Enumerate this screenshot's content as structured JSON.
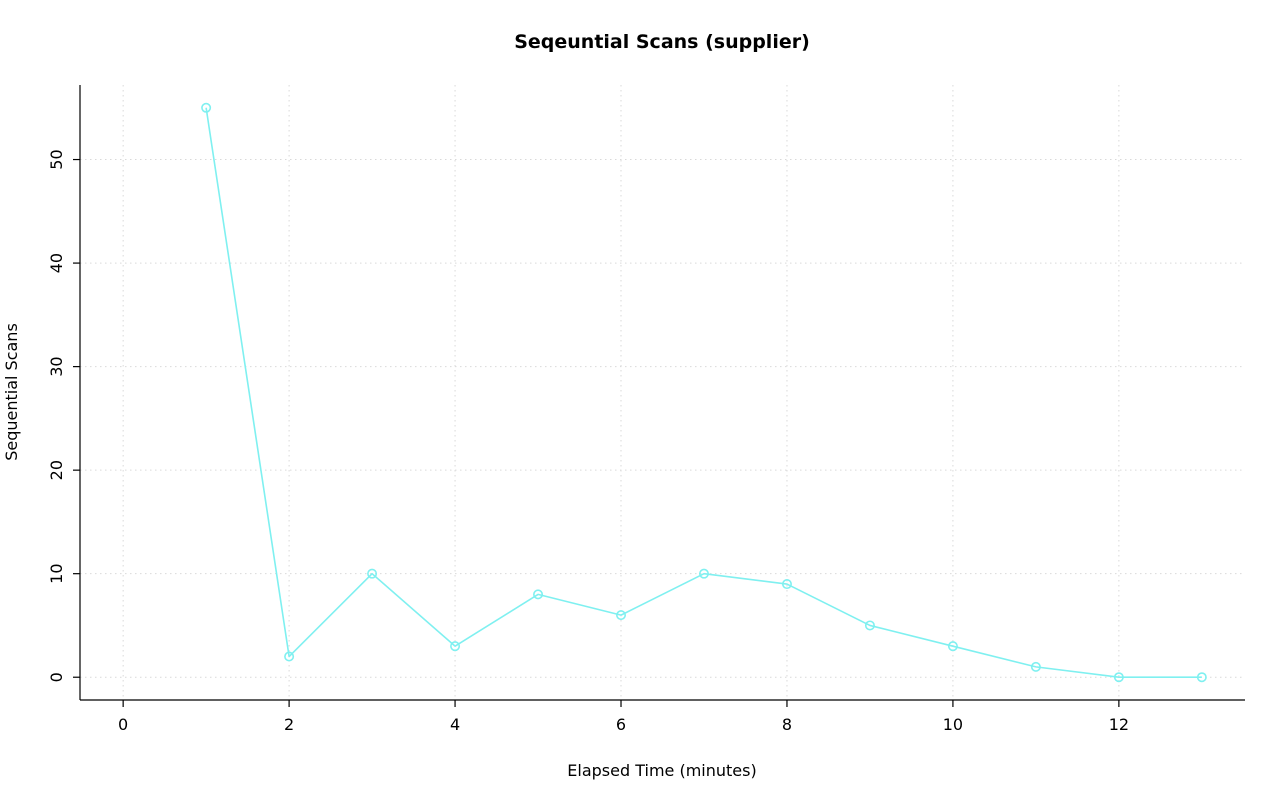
{
  "chart_data": {
    "type": "line",
    "title": "Seqeuntial Scans (supplier)",
    "xlabel": "Elapsed Time (minutes)",
    "ylabel": "Sequential Scans",
    "x": [
      1,
      2,
      3,
      4,
      5,
      6,
      7,
      8,
      9,
      10,
      11,
      12,
      13
    ],
    "values": [
      55,
      2,
      10,
      3,
      8,
      6,
      10,
      9,
      5,
      3,
      1,
      0,
      0
    ],
    "xlim": [
      0,
      13
    ],
    "ylim": [
      0,
      55
    ],
    "xticks": [
      0,
      2,
      4,
      6,
      8,
      10,
      12
    ],
    "yticks": [
      0,
      10,
      20,
      30,
      40,
      50
    ],
    "line_color": "#7FF0F0",
    "marker": "open-circle",
    "marker_color": "#7FF0F0",
    "grid_color": "#d9d9d9",
    "grid_style": "dotted",
    "axis_color": "#000000",
    "legend": "none",
    "grid": true
  }
}
